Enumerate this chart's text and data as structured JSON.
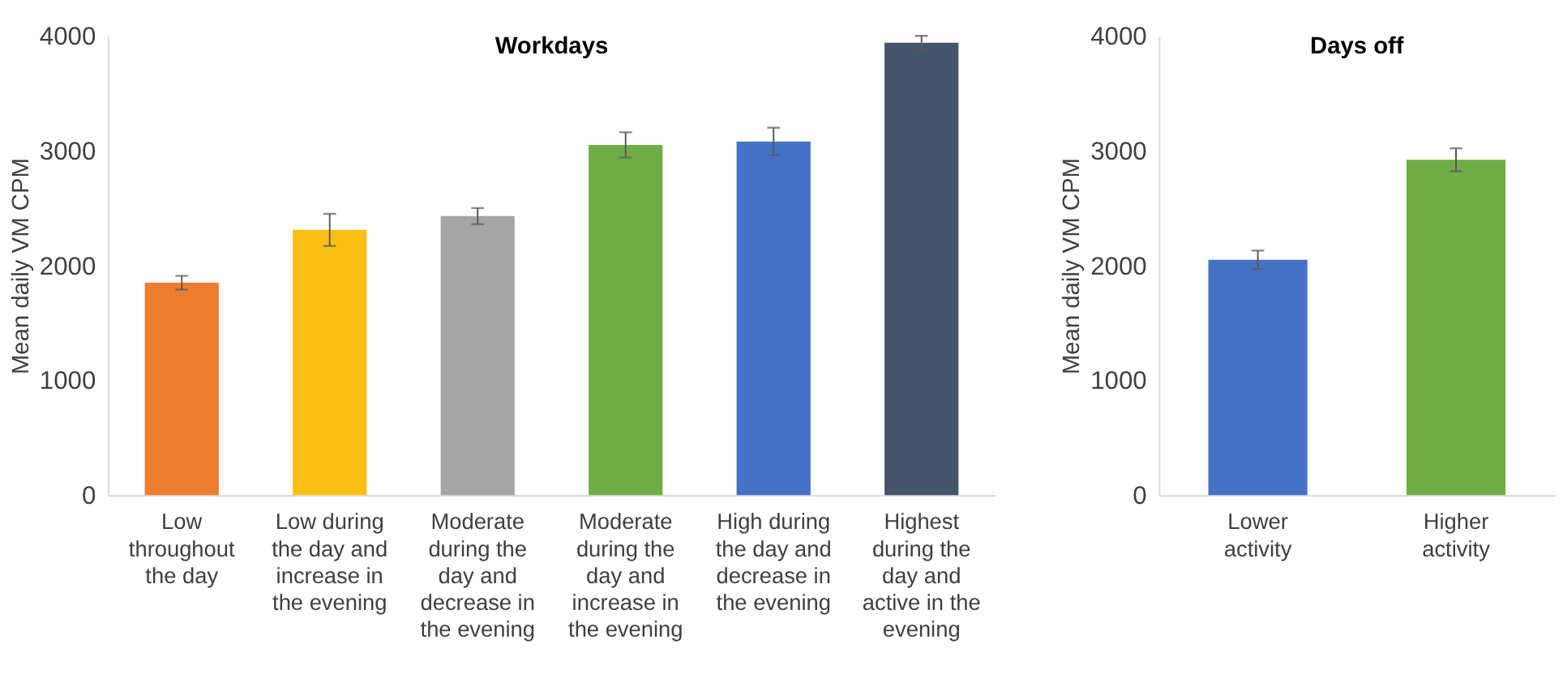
{
  "chart_data": [
    {
      "type": "bar",
      "title": "Workdays",
      "ylabel": "Mean daily VM CPM",
      "categories": [
        "Low throughout the day",
        "Low during the day and increase in the evening",
        "Moderate during the day and decrease in the evening",
        "Moderate during the day and increase in the evening",
        "High during the day and decrease in the evening",
        "Highest during the day and active in the evening"
      ],
      "values": [
        1850,
        2310,
        2430,
        3050,
        3080,
        3940
      ],
      "errors": [
        60,
        140,
        70,
        110,
        120,
        60
      ],
      "colors": [
        "#ed7d31",
        "#fbbf13",
        "#a5a5a5",
        "#70ad47",
        "#4472c4",
        "#44546a"
      ],
      "ylim": [
        0,
        4000
      ],
      "yticks": [
        0,
        1000,
        2000,
        3000,
        4000
      ],
      "grid": false,
      "legend": false
    },
    {
      "type": "bar",
      "title": "Days off",
      "ylabel": "Mean daily VM CPM",
      "categories": [
        "Lower activity",
        "Higher activity"
      ],
      "values": [
        2050,
        2920
      ],
      "errors": [
        80,
        100
      ],
      "colors": [
        "#4472c4",
        "#70ad47"
      ],
      "ylim": [
        0,
        4000
      ],
      "yticks": [
        0,
        1000,
        2000,
        3000,
        4000
      ],
      "grid": false,
      "legend": false
    }
  ]
}
